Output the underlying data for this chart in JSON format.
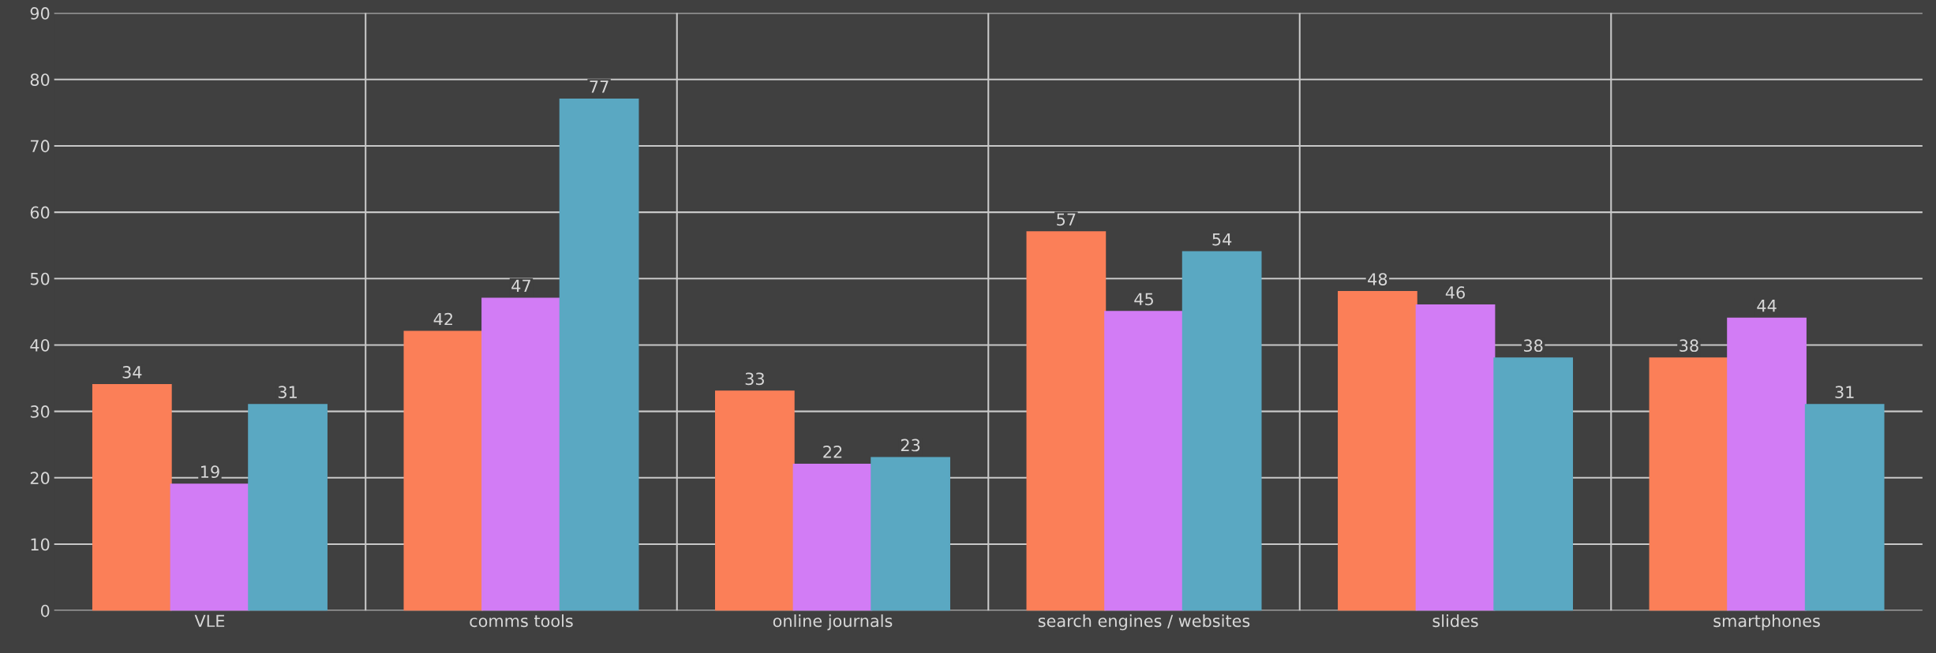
{
  "chart_data": {
    "type": "bar",
    "categories": [
      "VLE",
      "comms tools",
      "online journals",
      "search engines / websites",
      "slides",
      "smartphones"
    ],
    "series": [
      {
        "color": "#fb7f58",
        "values": [
          34,
          42,
          33,
          57,
          48,
          38
        ]
      },
      {
        "color": "#d27cf5",
        "values": [
          19,
          47,
          22,
          45,
          46,
          44
        ]
      },
      {
        "color": "#5aa8c2",
        "values": [
          31,
          77,
          23,
          54,
          38,
          31
        ]
      }
    ],
    "ylim": [
      0,
      90
    ],
    "yticks": [
      0,
      10,
      20,
      30,
      40,
      50,
      60,
      70,
      80,
      90
    ],
    "grid": true,
    "data_labels": true
  }
}
